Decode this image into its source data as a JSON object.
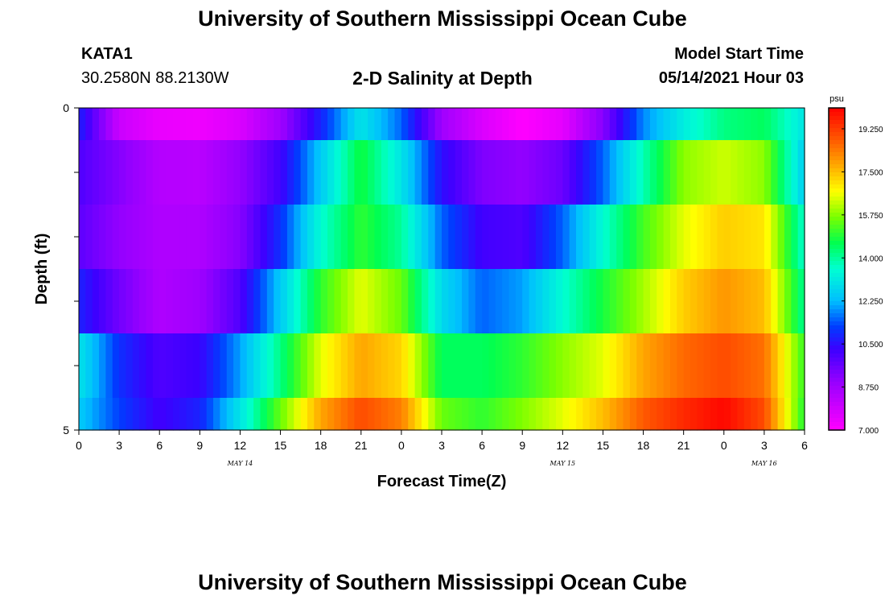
{
  "header": {
    "title": "University of Southern Mississippi Ocean Cube",
    "station_id": "KATA1",
    "station_coords": "30.2580N  88.2130W",
    "subtitle": "2-D Salinity at Depth",
    "model_start_label": "Model Start Time",
    "model_start_value": "05/14/2021 Hour 03"
  },
  "footer": {
    "title": "University of Southern Mississippi Ocean Cube"
  },
  "chart_data": {
    "type": "heatmap",
    "title": "2-D Salinity at Depth",
    "xlabel": "Forecast Time(Z)",
    "ylabel": "Depth (ft)",
    "x_tick_labels": [
      "0",
      "3",
      "6",
      "9",
      "12",
      "15",
      "18",
      "21",
      "0",
      "3",
      "6",
      "9",
      "12",
      "15",
      "18",
      "21",
      "0",
      "3",
      "6"
    ],
    "date_labels": [
      "MAY 14",
      "MAY 15",
      "MAY 16"
    ],
    "y_tick_labels": [
      "0",
      "5"
    ],
    "ylim": [
      0,
      5
    ],
    "x_hours": [
      0,
      3,
      6,
      9,
      12,
      15,
      18,
      21,
      24,
      27,
      30,
      33,
      36,
      39,
      42,
      45,
      48,
      51,
      54
    ],
    "depth_layers_ft": [
      0.25,
      1.0,
      2.0,
      3.0,
      4.0,
      4.75
    ],
    "values_psu": [
      [
        10.8,
        8.0,
        7.4,
        7.3,
        7.7,
        8.8,
        10.8,
        13.0,
        11.5,
        8.8,
        7.7,
        7.0,
        7.5,
        9.2,
        11.8,
        13.2,
        14.2,
        14.5,
        13.0
      ],
      [
        10.0,
        9.2,
        8.4,
        8.3,
        9.0,
        10.2,
        12.5,
        14.8,
        13.0,
        10.5,
        9.3,
        9.0,
        9.6,
        11.5,
        13.8,
        15.8,
        16.3,
        15.8,
        12.5
      ],
      [
        9.8,
        9.0,
        8.5,
        8.5,
        9.2,
        11.0,
        13.5,
        15.0,
        14.0,
        11.5,
        10.2,
        10.0,
        11.5,
        13.5,
        15.2,
        16.5,
        17.3,
        17.0,
        13.5
      ],
      [
        10.8,
        9.5,
        8.5,
        8.8,
        10.0,
        12.5,
        15.0,
        16.5,
        15.5,
        12.8,
        11.5,
        12.0,
        13.5,
        14.8,
        16.0,
        17.3,
        18.0,
        17.5,
        14.0
      ],
      [
        13.0,
        11.0,
        10.0,
        10.3,
        12.0,
        14.2,
        16.5,
        17.8,
        17.2,
        14.5,
        14.5,
        15.0,
        15.8,
        16.5,
        17.8,
        18.6,
        19.0,
        18.5,
        15.0
      ],
      [
        12.5,
        11.2,
        10.2,
        10.8,
        13.0,
        15.5,
        17.8,
        19.0,
        18.3,
        15.5,
        15.0,
        15.7,
        16.5,
        17.5,
        18.8,
        19.5,
        20.0,
        19.0,
        14.8
      ]
    ],
    "colorbar": {
      "unit": "psu",
      "tick_labels": [
        "19.250",
        "17.500",
        "15.750",
        "14.000",
        "12.250",
        "10.500",
        "8.750",
        "7.000"
      ],
      "range": [
        7.0,
        20.1
      ]
    }
  }
}
